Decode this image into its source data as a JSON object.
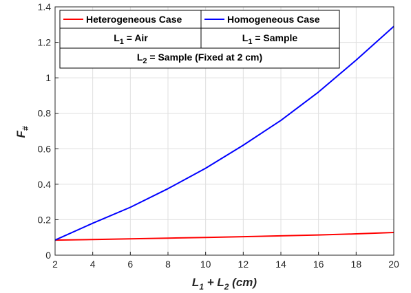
{
  "chart_data": {
    "type": "line",
    "title": "",
    "xlabel": {
      "main": "L",
      "sub1": "1",
      "plus": " + L",
      "sub2": "2",
      "unit": " (cm)"
    },
    "ylabel": {
      "main": "F",
      "sub": "#"
    },
    "xlim": [
      2,
      20
    ],
    "ylim": [
      0,
      1.4
    ],
    "xticks": [
      2,
      4,
      6,
      8,
      10,
      12,
      14,
      16,
      18,
      20
    ],
    "yticks": [
      0,
      0.2,
      0.4,
      0.6,
      0.8,
      1,
      1.2,
      1.4
    ],
    "grid": true,
    "legend_position": "top-left",
    "series": [
      {
        "name": "Heterogeneous Case",
        "color": "#ff0000",
        "x": [
          2,
          4,
          6,
          8,
          10,
          12,
          14,
          16,
          18,
          20
        ],
        "values": [
          0.085,
          0.088,
          0.092,
          0.096,
          0.1,
          0.104,
          0.109,
          0.114,
          0.12,
          0.128
        ]
      },
      {
        "name": "Homogeneous Case",
        "color": "#0000ff",
        "x": [
          2,
          4,
          6,
          8,
          10,
          12,
          14,
          16,
          18,
          20
        ],
        "values": [
          0.085,
          0.18,
          0.27,
          0.375,
          0.49,
          0.62,
          0.76,
          0.92,
          1.1,
          1.29
        ]
      }
    ],
    "legend_table": {
      "row2_left": {
        "main": "L",
        "sub": "1",
        "rest": " = Air"
      },
      "row2_right": {
        "main": "L",
        "sub": "1",
        "rest": " = Sample"
      },
      "row3": {
        "main": "L",
        "sub": "2",
        "rest": " =  Sample (Fixed at 2 cm)"
      }
    }
  }
}
